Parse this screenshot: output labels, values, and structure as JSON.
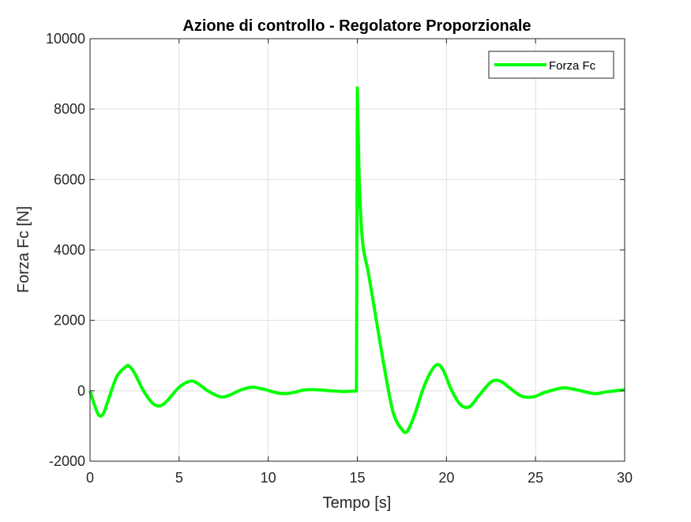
{
  "chart_data": {
    "type": "line",
    "title": "Azione di controllo - Regolatore Proporzionale",
    "xlabel": "Tempo [s]",
    "ylabel": "Forza Fc [N]",
    "xlim": [
      0,
      30
    ],
    "ylim": [
      -2000,
      10000
    ],
    "xticks": [
      0,
      5,
      10,
      15,
      20,
      25,
      30
    ],
    "xtick_labels": [
      "0",
      "5",
      "10",
      "15",
      "20",
      "25",
      "30"
    ],
    "yticks": [
      -2000,
      0,
      2000,
      4000,
      6000,
      8000,
      10000
    ],
    "ytick_labels": [
      "-2000",
      "0",
      "2000",
      "4000",
      "6000",
      "8000",
      "10000"
    ],
    "grid": true,
    "legend_position": "top-right",
    "series": [
      {
        "name": "Forza Fc",
        "color": "#00ff00",
        "x": [
          0,
          0.25,
          0.5,
          0.75,
          1.0,
          1.5,
          2.0,
          2.2,
          2.5,
          3.0,
          3.5,
          3.9,
          4.3,
          5.0,
          5.6,
          6.0,
          6.6,
          7.3,
          7.8,
          8.5,
          9.1,
          9.7,
          10.5,
          11.0,
          11.5,
          12.0,
          12.7,
          13.5,
          14.2,
          14.8,
          14.95,
          15.0,
          15.1,
          15.3,
          15.6,
          16.0,
          16.5,
          17.0,
          17.5,
          17.8,
          18.2,
          18.8,
          19.4,
          19.8,
          20.3,
          20.8,
          21.3,
          21.8,
          22.5,
          23.0,
          23.5,
          24.2,
          24.9,
          25.5,
          26.5,
          27.2,
          28.3,
          29.0,
          30.0
        ],
        "y": [
          0,
          -400,
          -700,
          -650,
          -300,
          400,
          680,
          700,
          500,
          0,
          -350,
          -430,
          -300,
          100,
          270,
          220,
          0,
          -170,
          -130,
          30,
          100,
          50,
          -60,
          -80,
          -40,
          20,
          30,
          0,
          -20,
          -10,
          -10,
          8600,
          6000,
          4200,
          3400,
          2200,
          700,
          -600,
          -1100,
          -1150,
          -700,
          200,
          720,
          600,
          0,
          -400,
          -450,
          -150,
          250,
          280,
          100,
          -150,
          -170,
          -50,
          80,
          40,
          -80,
          -30,
          30
        ]
      }
    ]
  }
}
